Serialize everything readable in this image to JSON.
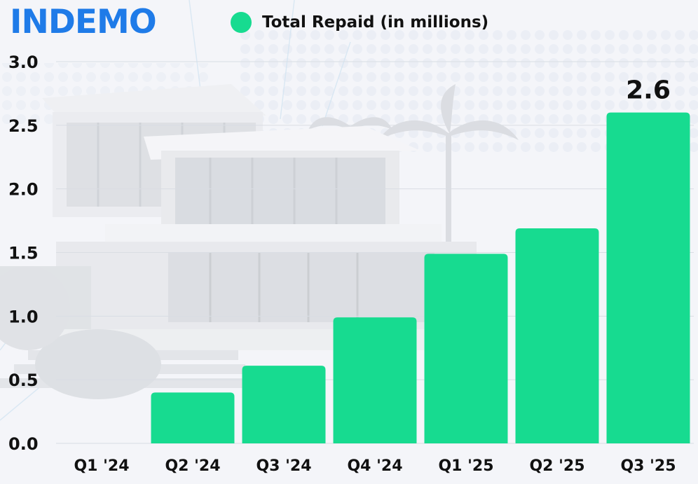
{
  "brand": {
    "name": "INDEMO",
    "color": "#1f7be8"
  },
  "legend": {
    "label": "Total Repaid (in millions)",
    "color": "#17db90"
  },
  "colors": {
    "bar": "#17db90",
    "text": "#111111",
    "grid": "#d9dde3"
  },
  "background": {
    "description_icon": "house-photo"
  },
  "chart_data": {
    "type": "bar",
    "categories": [
      "Q1 '24",
      "Q2 '24",
      "Q3 '24",
      "Q4 '24",
      "Q1 '25",
      "Q2 '25",
      "Q3 '25"
    ],
    "series": [
      {
        "name": "Total Repaid (in millions)",
        "values": [
          0,
          0.4,
          0.61,
          0.99,
          1.49,
          1.69,
          2.6
        ]
      }
    ],
    "ylim": [
      0,
      3.0
    ],
    "yticks": [
      "0.0",
      "0.5",
      "1.0",
      "1.5",
      "2.0",
      "2.5",
      "3.0"
    ],
    "data_labels": [
      null,
      null,
      null,
      null,
      null,
      null,
      "2.6"
    ],
    "grid": true,
    "legend_position": "top"
  }
}
